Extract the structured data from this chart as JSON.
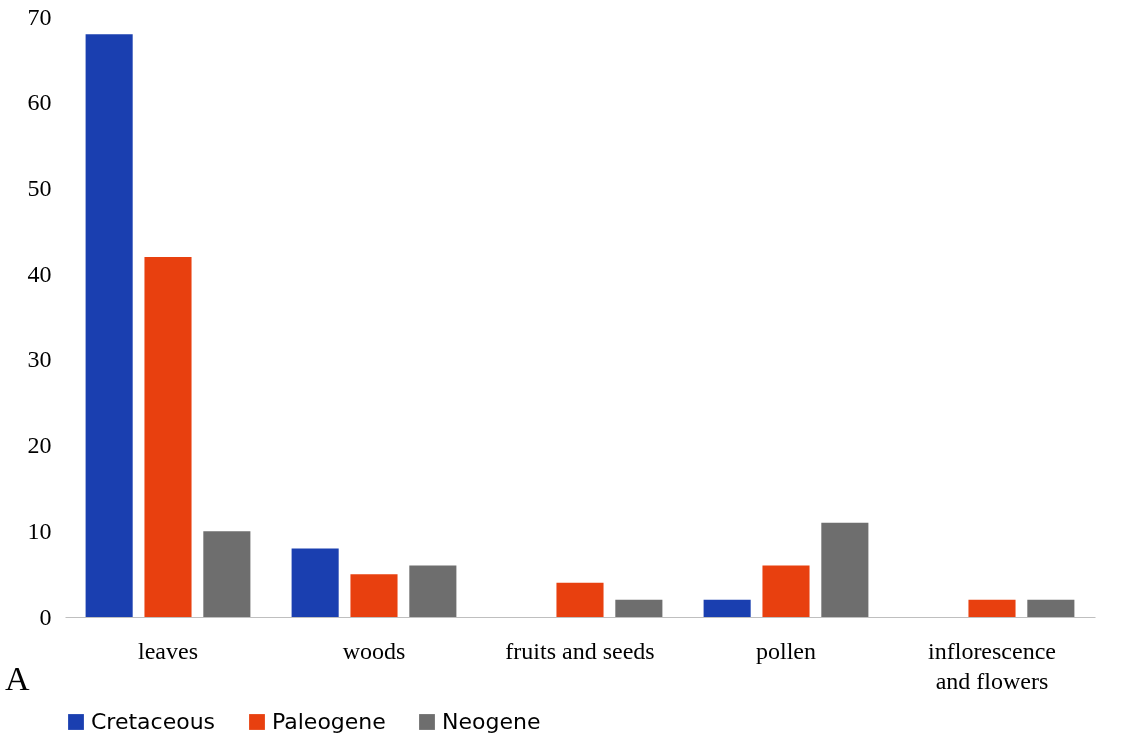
{
  "chart_data": {
    "type": "bar",
    "categories": [
      "leaves",
      "woods",
      "fruits and seeds",
      "pollen",
      "inflorescence and flowers"
    ],
    "series": [
      {
        "name": "Cretaceous",
        "color": "#1a3fb0",
        "values": [
          68,
          8,
          0,
          2,
          0
        ]
      },
      {
        "name": "Paleogene",
        "color": "#e8400f",
        "values": [
          42,
          5,
          4,
          6,
          2
        ]
      },
      {
        "name": "Neogene",
        "color": "#6e6e6e",
        "values": [
          10,
          6,
          2,
          11,
          2
        ]
      }
    ],
    "ylim": [
      0,
      70
    ],
    "yticks": [
      0,
      10,
      20,
      30,
      40,
      50,
      60,
      70
    ],
    "grid": false,
    "legend": "bottom",
    "annotations": [
      "A"
    ]
  }
}
